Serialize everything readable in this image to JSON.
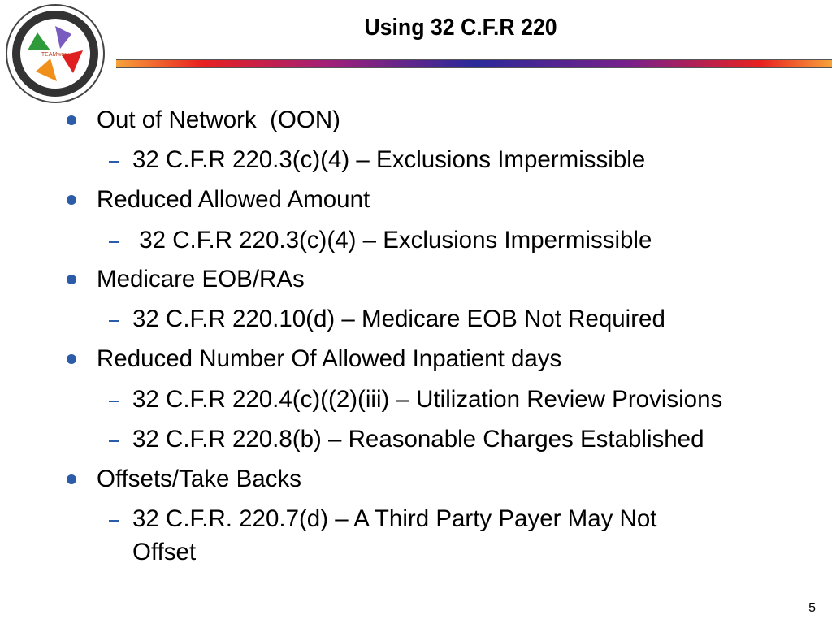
{
  "slide": {
    "title": "Using 32 C.F.R 220",
    "logo_text": "2011 MHS Revenue Cycle Educational Conference - TEAMwork - Together Everyone Achieves More - MEPRS, UBO, UBU, DQ",
    "accent_color": "#2a5caa",
    "items": [
      {
        "level": 1,
        "text": "Out of Network  (OON)"
      },
      {
        "level": 2,
        "text": "32 C.F.R 220.3(c)(4) – Exclusions Impermissible"
      },
      {
        "level": 1,
        "text": "Reduced Allowed Amount"
      },
      {
        "level": 2,
        "text": " 32 C.F.R 220.3(c)(4) – Exclusions Impermissible"
      },
      {
        "level": 1,
        "text": "Medicare EOB/RAs"
      },
      {
        "level": 2,
        "text": "32 C.F.R 220.10(d) – Medicare EOB Not Required"
      },
      {
        "level": 1,
        "text": "Reduced Number Of Allowed Inpatient days"
      },
      {
        "level": 2,
        "text": "32 C.F.R 220.4(c)((2)(iii) – Utilization Review Provisions"
      },
      {
        "level": 2,
        "text": "32 C.F.R 220.8(b) – Reasonable Charges Established"
      },
      {
        "level": 1,
        "text": "Offsets/Take Backs"
      },
      {
        "level": 2,
        "text": "32 C.F.R. 220.7(d) – A Third Party Payer May Not"
      },
      {
        "level": 3,
        "text": "Offset"
      }
    ],
    "page_number": "5"
  }
}
